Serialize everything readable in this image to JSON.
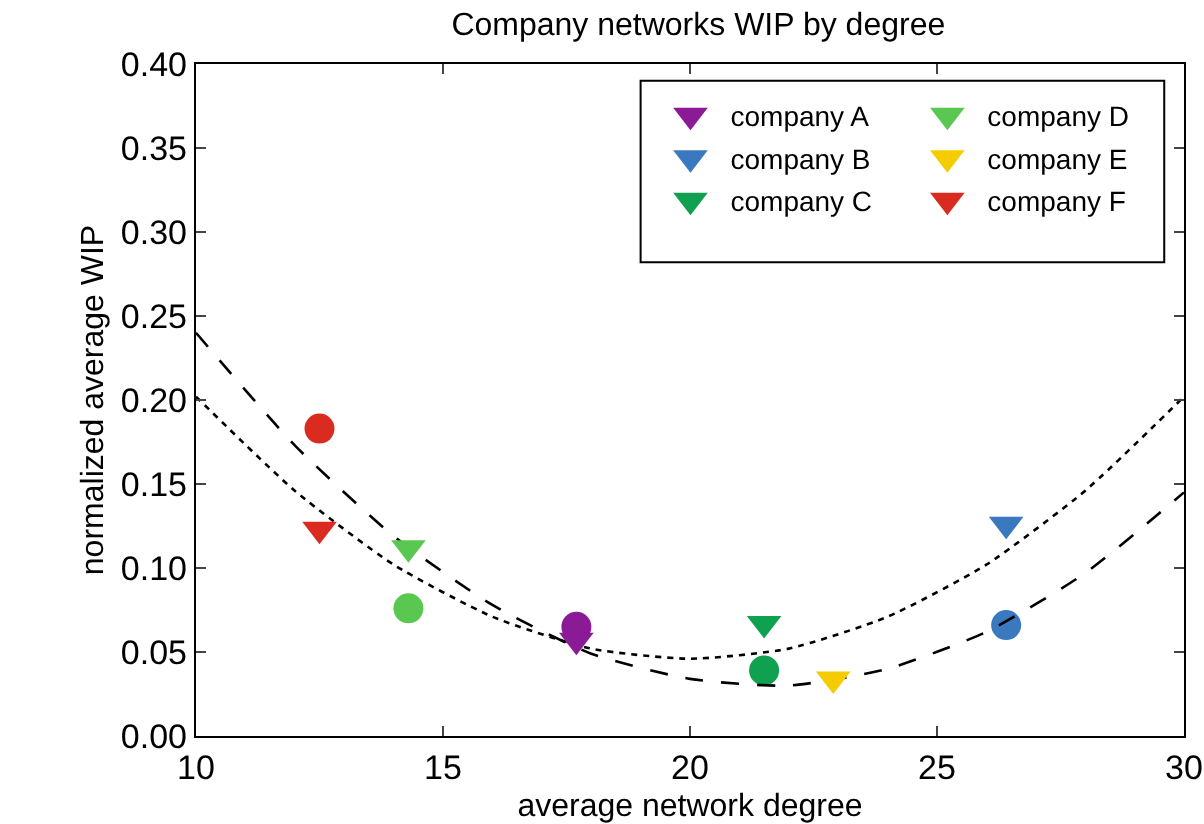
{
  "chart_data": {
    "type": "scatter",
    "title": "Company networks WIP by degree",
    "xlabel": "average network degree",
    "ylabel": "normalized average WIP",
    "xlim": [
      10,
      30
    ],
    "xticks": [
      10,
      15,
      20,
      25,
      30
    ],
    "ylim": [
      0,
      0.4
    ],
    "yticks": [
      {
        "value": 0,
        "label": "0.00"
      },
      {
        "value": 0.05,
        "label": "0.05"
      },
      {
        "value": 0.1,
        "label": "0.10"
      },
      {
        "value": 0.15,
        "label": "0.15"
      },
      {
        "value": 0.2,
        "label": "0.20"
      },
      {
        "value": 0.25,
        "label": "0.25"
      },
      {
        "value": 0.3,
        "label": "0.30"
      },
      {
        "value": 0.35,
        "label": "0.35"
      },
      {
        "value": 0.4,
        "label": "0.40"
      }
    ],
    "grid": false,
    "legend": "top right",
    "series": [
      {
        "name": "company A",
        "color": "#8b1a96",
        "marker": "triangle",
        "x": [
          17.7
        ],
        "values": [
          0.057
        ]
      },
      {
        "name": "company B",
        "color": "#3a78c0",
        "marker": "triangle",
        "x": [
          26.4
        ],
        "values": [
          0.126
        ]
      },
      {
        "name": "company C",
        "color": "#0fa050",
        "marker": "triangle",
        "x": [
          21.5
        ],
        "values": [
          0.067
        ]
      },
      {
        "name": "company D",
        "color": "#5ac850",
        "marker": "triangle",
        "x": [
          14.3
        ],
        "values": [
          0.112
        ]
      },
      {
        "name": "company E",
        "color": "#f5cc00",
        "marker": "triangle",
        "x": [
          22.9
        ],
        "values": [
          0.034
        ]
      },
      {
        "name": "company F",
        "color": "#d92b20",
        "marker": "triangle",
        "x": [
          12.5
        ],
        "values": [
          0.123
        ]
      },
      {
        "color": "#8b1a96",
        "marker": "circle",
        "x": [
          17.7
        ],
        "values": [
          0.065
        ]
      },
      {
        "color": "#3a78c0",
        "marker": "circle",
        "x": [
          26.4
        ],
        "values": [
          0.066
        ]
      },
      {
        "color": "#0fa050",
        "marker": "circle",
        "x": [
          21.5
        ],
        "values": [
          0.039
        ]
      },
      {
        "color": "#5ac850",
        "marker": "circle",
        "x": [
          14.3
        ],
        "values": [
          0.076
        ]
      },
      {
        "color": "#d92b20",
        "marker": "circle",
        "x": [
          12.5
        ],
        "values": [
          0.183
        ]
      },
      {
        "type": "line",
        "color": "#000000",
        "line_style": "dashed",
        "marker": "none",
        "x": [
          10,
          12,
          14,
          16,
          18,
          20,
          22,
          24,
          26,
          28,
          30
        ],
        "values": [
          0.24,
          0.173,
          0.119,
          0.078,
          0.049,
          0.034,
          0.03,
          0.04,
          0.062,
          0.097,
          0.145
        ]
      },
      {
        "type": "line",
        "color": "#000000",
        "line_style": "dotted",
        "marker": "none",
        "x": [
          10,
          12,
          14,
          16,
          18,
          20,
          22,
          24,
          26,
          28,
          30
        ],
        "values": [
          0.202,
          0.146,
          0.102,
          0.071,
          0.052,
          0.046,
          0.052,
          0.071,
          0.102,
          0.146,
          0.202
        ]
      }
    ]
  }
}
